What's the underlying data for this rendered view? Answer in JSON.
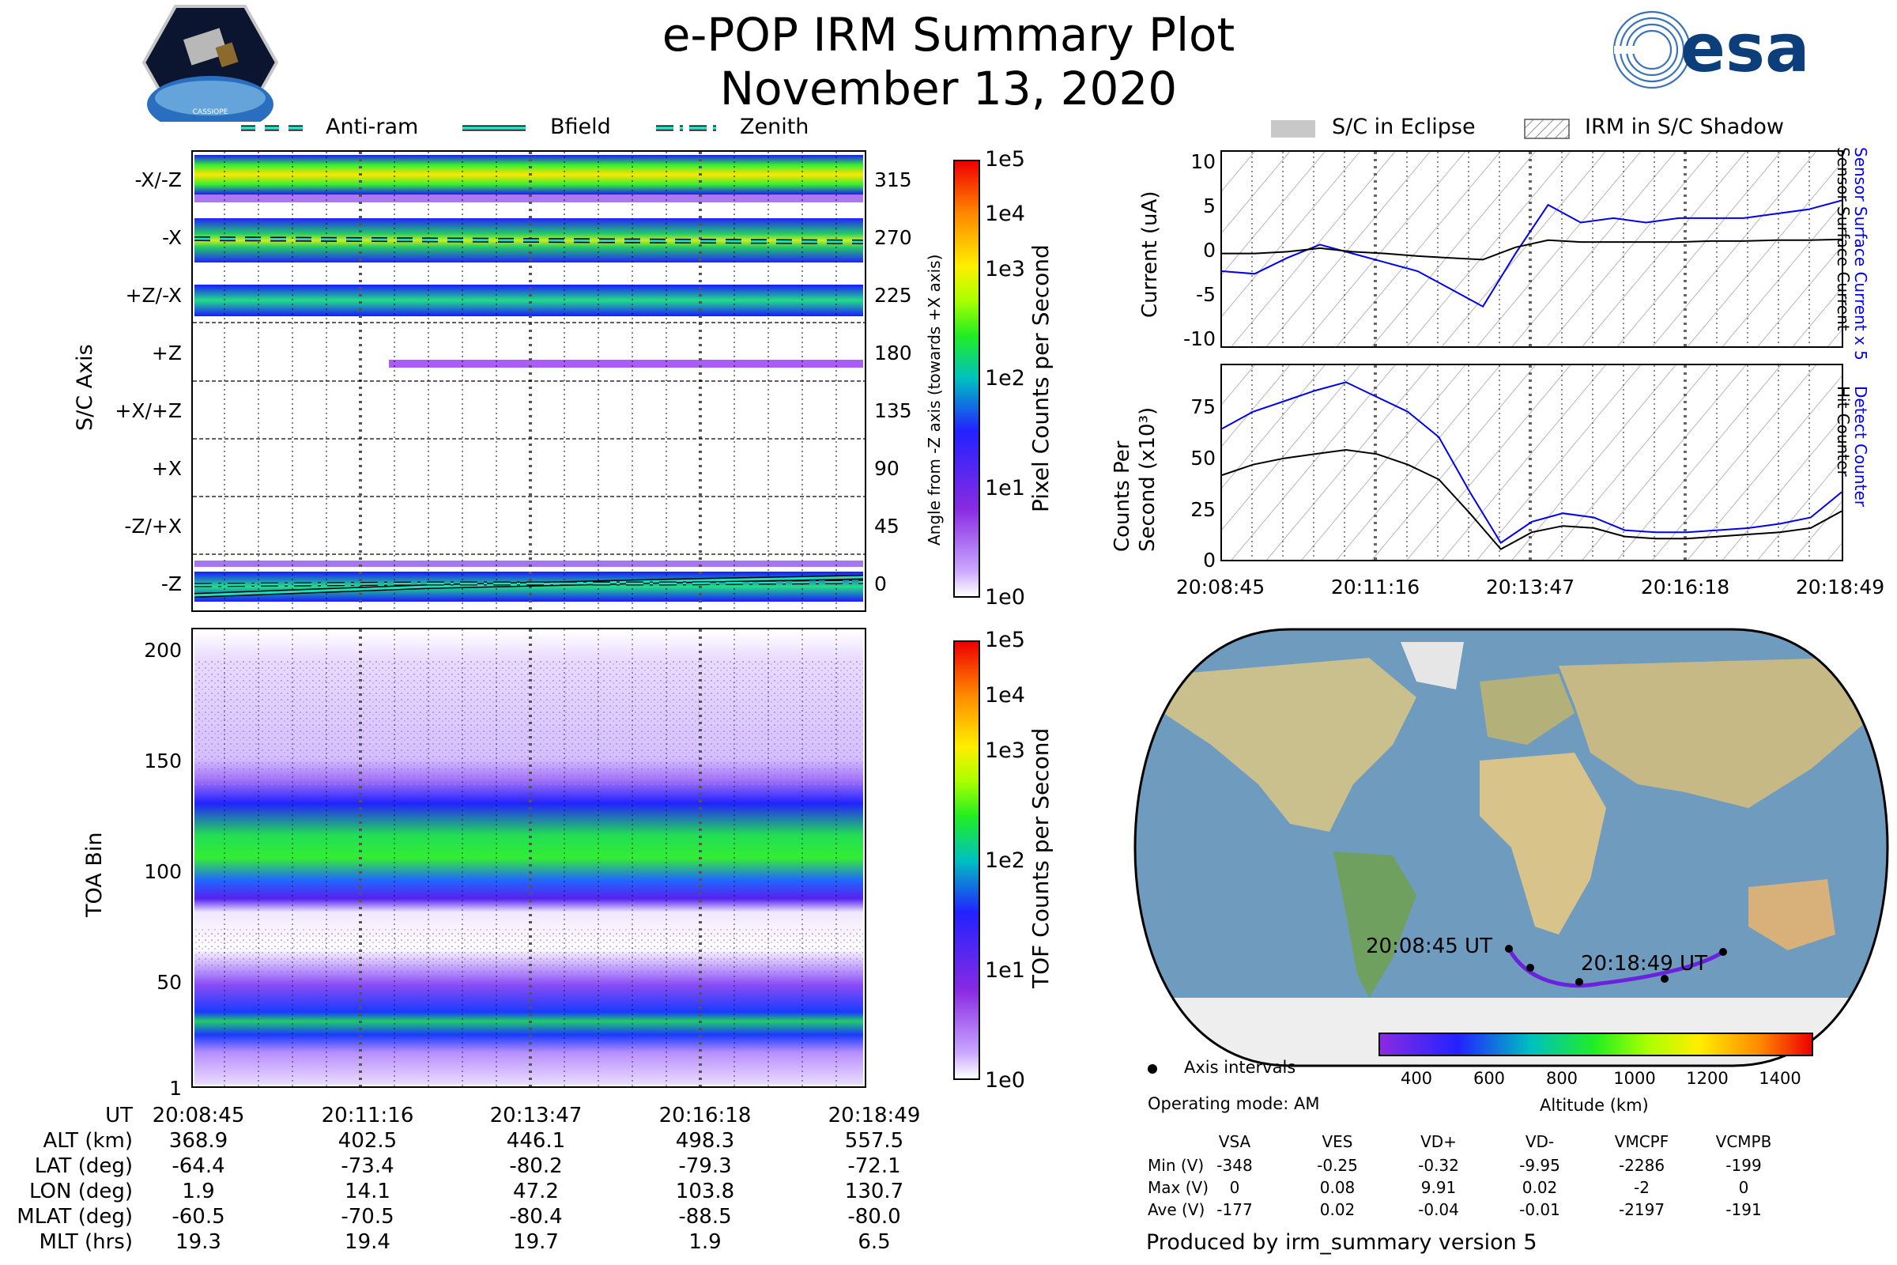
{
  "header": {
    "title_line1": "e-POP IRM Summary Plot",
    "title_line2": "November 13, 2020",
    "cassiope_logo_text": "CASSIOPE",
    "esa_logo_text": "esa"
  },
  "legend_left": {
    "items": [
      "Anti-ram",
      "Bfield",
      "Zenith"
    ]
  },
  "legend_right": {
    "items": [
      "S/C in Eclipse",
      "IRM in S/C Shadow"
    ]
  },
  "colors": {
    "legend_line": "#20dfc0",
    "current_blue": "#0000ee",
    "current_black": "#000000",
    "track": "#6a22dd",
    "ocean": "#6f9bbf",
    "land": "#c9c08e"
  },
  "top_left_panel": {
    "ylabel": "S/C Axis",
    "right_ylabel": "Angle from -Z axis (towards +X axis)",
    "left_ticks": [
      "-X/-Z",
      "-X",
      "+Z/-X",
      "+Z",
      "+X/+Z",
      "+X",
      "-Z/+X",
      "-Z"
    ],
    "right_ticks": [
      "315",
      "270",
      "225",
      "180",
      "135",
      "90",
      "45",
      "0"
    ],
    "colorbar_label": "Pixel Counts per Second",
    "colorbar_ticks": [
      "1e5",
      "1e4",
      "1e3",
      "1e2",
      "1e1",
      "1e0"
    ]
  },
  "bottom_left_panel": {
    "ylabel": "TOA Bin",
    "y_ticks": [
      "200",
      "150",
      "100",
      "50",
      "1"
    ],
    "colorbar_label": "TOF Counts per Second",
    "colorbar_ticks": [
      "1e5",
      "1e4",
      "1e3",
      "1e2",
      "1e1",
      "1e0"
    ]
  },
  "ephemeris": {
    "row_labels": [
      "UT",
      "ALT (km)",
      "LAT (deg)",
      "LON (deg)",
      "MLAT (deg)",
      "MLT (hrs)"
    ],
    "columns": [
      [
        "20:08:45",
        "368.9",
        "-64.4",
        "1.9",
        "-60.5",
        "19.3"
      ],
      [
        "20:11:16",
        "402.5",
        "-73.4",
        "14.1",
        "-70.5",
        "19.4"
      ],
      [
        "20:13:47",
        "446.1",
        "-80.2",
        "47.2",
        "-80.4",
        "19.7"
      ],
      [
        "20:16:18",
        "498.3",
        "-79.3",
        "103.8",
        "-88.5",
        "1.9"
      ],
      [
        "20:18:49",
        "557.5",
        "-72.1",
        "130.7",
        "-80.0",
        "6.5"
      ]
    ]
  },
  "current_panel": {
    "ylabel": "Current (uA)",
    "right_label_blue": "Sensor Surface Current x 5",
    "right_label_black": "Sensor Surface Current",
    "y_ticks": [
      "10",
      "5",
      "0",
      "-5",
      "-10"
    ]
  },
  "counts_panel": {
    "ylabel_line1": "Counts Per",
    "ylabel_line2": "Second (x10³)",
    "right_label_blue": "Detect Counter",
    "right_label_black": "Hit Counter",
    "y_ticks": [
      "75",
      "50",
      "25",
      "0"
    ],
    "x_ticks": [
      "20:08:45",
      "20:11:16",
      "20:13:47",
      "20:16:18",
      "20:18:49"
    ]
  },
  "chart_data": [
    {
      "type": "line",
      "title": "Sensor Surface Current",
      "xlabel": "UT",
      "ylabel": "Current (uA)",
      "ylim": [
        -11,
        11
      ],
      "categories": [
        "20:08:45",
        "20:09:45",
        "20:10:45",
        "20:11:16",
        "20:11:45",
        "20:12:15",
        "20:12:45",
        "20:13:15",
        "20:13:40",
        "20:13:47",
        "20:14:15",
        "20:14:45",
        "20:15:15",
        "20:15:45",
        "20:16:18",
        "20:16:45",
        "20:17:15",
        "20:17:45",
        "20:18:15",
        "20:18:49"
      ],
      "series": [
        {
          "name": "Sensor Surface Current x 5",
          "values": [
            -2.5,
            -2.8,
            -1.0,
            0.5,
            -0.5,
            -1.5,
            -2.5,
            -4.5,
            -6.5,
            -0.5,
            5.0,
            3.0,
            3.5,
            3.0,
            3.5,
            3.5,
            3.5,
            4.0,
            4.5,
            5.5
          ]
        },
        {
          "name": "Sensor Surface Current",
          "values": [
            -0.5,
            -0.5,
            -0.3,
            0.1,
            -0.3,
            -0.5,
            -0.8,
            -1.0,
            -1.2,
            0.2,
            1.0,
            0.8,
            0.8,
            0.8,
            0.8,
            0.9,
            0.9,
            1.0,
            1.0,
            1.1
          ]
        }
      ]
    },
    {
      "type": "line",
      "title": "Counts Per Second (x10³)",
      "xlabel": "UT",
      "ylabel": "Counts Per Second (x10³)",
      "ylim": [
        0,
        92
      ],
      "categories": [
        "20:08:45",
        "20:09:15",
        "20:09:45",
        "20:10:15",
        "20:10:45",
        "20:11:16",
        "20:11:45",
        "20:12:15",
        "20:12:45",
        "20:13:15",
        "20:13:47",
        "20:14:15",
        "20:14:45",
        "20:15:15",
        "20:15:45",
        "20:16:18",
        "20:16:45",
        "20:17:15",
        "20:17:45",
        "20:18:15",
        "20:18:49"
      ],
      "series": [
        {
          "name": "Detect Counter",
          "values": [
            62,
            70,
            75,
            80,
            84,
            77,
            70,
            58,
            32,
            8,
            18,
            22,
            20,
            14,
            13,
            13,
            14,
            15,
            17,
            20,
            32
          ]
        },
        {
          "name": "Hit Counter",
          "values": [
            40,
            45,
            48,
            50,
            52,
            50,
            45,
            38,
            22,
            5,
            13,
            16,
            15,
            11,
            10,
            10,
            11,
            12,
            13,
            15,
            23
          ]
        }
      ]
    }
  ],
  "map": {
    "start_label": "20:08:45 UT",
    "end_label": "20:18:49 UT",
    "legend_axis_intervals": "Axis intervals",
    "operating_mode": "Operating mode: AM",
    "altitude_label": "Altitude (km)",
    "altitude_ticks": [
      "400",
      "600",
      "800",
      "1000",
      "1200",
      "1400"
    ]
  },
  "voltage_table": {
    "headers": [
      "VSA",
      "VES",
      "VD+",
      "VD-",
      "VMCPF",
      "VCMPB"
    ],
    "rows": [
      {
        "label": "Min (V)",
        "values": [
          "-348",
          "-0.25",
          "-0.32",
          "-9.95",
          "-2286",
          "-199"
        ]
      },
      {
        "label": "Max (V)",
        "values": [
          "0",
          "0.08",
          "9.91",
          "0.02",
          "-2",
          "0"
        ]
      },
      {
        "label": "Ave (V)",
        "values": [
          "-177",
          "0.02",
          "-0.04",
          "-0.01",
          "-2197",
          "-191"
        ]
      }
    ]
  },
  "footer": {
    "produced_by": "Produced by irm_summary version 5"
  }
}
